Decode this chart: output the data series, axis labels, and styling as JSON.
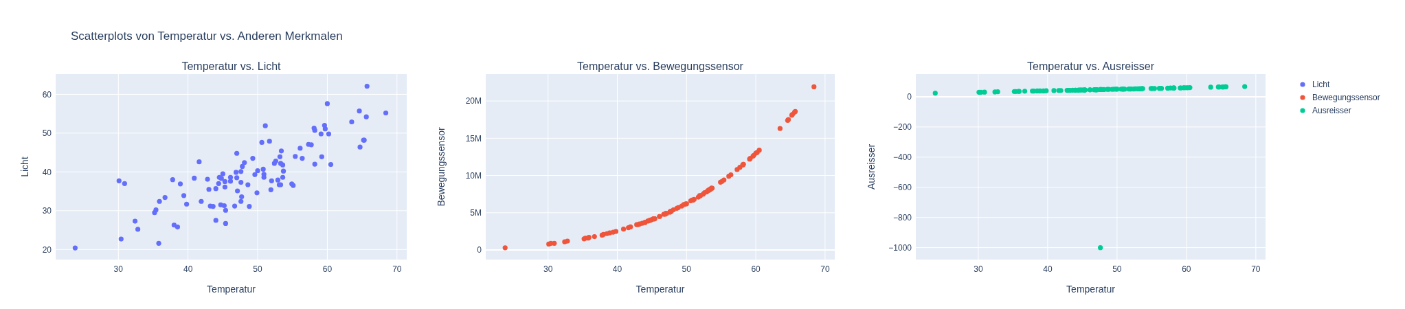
{
  "chart_data": [
    {
      "type": "scatter",
      "title": "Temperatur vs. Licht",
      "xlabel": "Temperatur",
      "ylabel": "Licht",
      "annotations": [
        "Scatterplots von Temperatur vs. Anderen Merkmalen"
      ],
      "xlim": [
        21,
        71.4
      ],
      "xticks": [
        30,
        40,
        50,
        60,
        70
      ],
      "ylim": [
        17.4,
        65.2
      ],
      "yticks": [
        20,
        30,
        40,
        50,
        60
      ],
      "grid": true,
      "marker": "circle",
      "legend": "right",
      "series": [
        {
          "name": "Licht",
          "color": "#636efa",
          "x": [
            23.8,
            30.1,
            30.9,
            30.4,
            32.4,
            32.8,
            35.2,
            35.4,
            35.8,
            35.9,
            36.7,
            37.8,
            38.0,
            38.5,
            38.9,
            39.4,
            39.8,
            40.9,
            41.6,
            41.9,
            42.8,
            43.0,
            43.2,
            43.6,
            44.0,
            44.0,
            44.4,
            44.5,
            44.8,
            44.7,
            45.0,
            45.2,
            45.3,
            45.3,
            45.4,
            45.4,
            46.1,
            46.1,
            46.7,
            46.9,
            47.0,
            47.0,
            47.1,
            47.6,
            47.6,
            47.6,
            47.7,
            47.8,
            48.1,
            48.6,
            48.8,
            49.3,
            49.6,
            49.9,
            50.0,
            50.6,
            50.8,
            50.9,
            50.9,
            51.1,
            51.7,
            51.9,
            52.0,
            52.4,
            52.6,
            52.9,
            53.1,
            53.3,
            53.2,
            53.3,
            53.4,
            53.6,
            53.6,
            53.7,
            54.9,
            55.1,
            55.4,
            56.1,
            56.4,
            57.3,
            57.7,
            58.1,
            58.2,
            58.2,
            59.1,
            59.2,
            59.6,
            59.7,
            60.0,
            60.2,
            60.5,
            63.5,
            64.6,
            64.7,
            65.2,
            65.3,
            65.6,
            65.7,
            68.4
          ],
          "values": [
            20.4,
            37.7,
            37.0,
            22.7,
            27.3,
            25.2,
            29.5,
            30.2,
            21.6,
            32.4,
            33.4,
            38.0,
            26.3,
            25.8,
            36.9,
            33.9,
            31.7,
            38.4,
            42.6,
            32.4,
            38.1,
            35.5,
            31.2,
            31.1,
            27.5,
            35.7,
            37.0,
            38.6,
            38.3,
            31.5,
            39.5,
            31.3,
            37.5,
            36.1,
            26.7,
            30.1,
            38.6,
            37.6,
            31.2,
            39.9,
            44.8,
            38.5,
            35.1,
            40.1,
            37.3,
            32.4,
            33.6,
            41.4,
            42.4,
            36.7,
            31.1,
            43.5,
            39.3,
            34.6,
            40.3,
            47.6,
            40.7,
            39.4,
            38.6,
            51.9,
            47.9,
            35.4,
            37.7,
            42.2,
            42.8,
            37.9,
            36.7,
            36.7,
            43.9,
            42.2,
            45.4,
            41.8,
            38.6,
            40.2,
            36.9,
            36.5,
            44.0,
            46.1,
            43.5,
            47.1,
            47.0,
            51.3,
            50.7,
            42.0,
            49.8,
            43.9,
            52.0,
            51.1,
            57.6,
            49.8,
            41.9,
            52.9,
            55.7,
            46.4,
            48.2,
            48.2,
            54.2,
            62.1,
            55.2
          ]
        }
      ]
    },
    {
      "type": "scatter",
      "title": "Temperatur vs. Bewegungssensor",
      "xlabel": "Temperatur",
      "ylabel": "Bewegungssensor",
      "xlim": [
        21,
        71.4
      ],
      "xticks": [
        30,
        40,
        50,
        60,
        70
      ],
      "ylim": [
        -1280000,
        23600000
      ],
      "yticks": [
        0,
        {
          "value": 5000000,
          "label": "5M"
        },
        {
          "value": 10000000,
          "label": "10M"
        },
        {
          "value": 15000000,
          "label": "15M"
        },
        {
          "value": 20000000,
          "label": "20M"
        }
      ],
      "grid": true,
      "marker": "circle",
      "legend": "right",
      "series": [
        {
          "name": "Bewegungssensor",
          "color": "#ef553b",
          "x": [
            23.8,
            30.1,
            30.9,
            30.4,
            32.4,
            32.8,
            35.2,
            35.4,
            35.8,
            35.9,
            36.7,
            37.8,
            38.0,
            38.5,
            38.9,
            39.4,
            39.8,
            40.9,
            41.6,
            41.9,
            42.8,
            43.0,
            43.2,
            43.6,
            44.0,
            44.0,
            44.4,
            44.5,
            44.8,
            44.7,
            45.0,
            45.2,
            45.3,
            45.3,
            45.4,
            45.4,
            46.1,
            46.1,
            46.7,
            46.9,
            47.0,
            47.0,
            47.1,
            47.6,
            47.6,
            47.6,
            47.7,
            47.8,
            48.1,
            48.6,
            48.8,
            49.3,
            49.6,
            49.9,
            50.0,
            50.6,
            50.8,
            50.9,
            50.9,
            51.1,
            51.7,
            51.9,
            52.0,
            52.4,
            52.6,
            52.9,
            53.1,
            53.3,
            53.2,
            53.3,
            53.4,
            53.6,
            53.6,
            53.7,
            54.9,
            55.1,
            55.4,
            56.1,
            56.4,
            57.3,
            57.7,
            58.1,
            58.2,
            58.2,
            59.1,
            59.2,
            59.6,
            59.7,
            60.0,
            60.2,
            60.5,
            63.5,
            64.6,
            64.7,
            65.2,
            65.3,
            65.6,
            65.7,
            68.4
          ],
          "values": [
            300000,
            800000,
            900000,
            900000,
            1100000,
            1200000,
            1500000,
            1600000,
            1600000,
            1700000,
            1800000,
            2000000,
            2100000,
            2200000,
            2300000,
            2400000,
            2500000,
            2800000,
            3000000,
            3100000,
            3400000,
            3400000,
            3500000,
            3600000,
            3700000,
            3700000,
            3900000,
            3900000,
            4000000,
            4000000,
            4100000,
            4200000,
            4200000,
            4200000,
            4200000,
            4200000,
            4500000,
            4500000,
            4800000,
            4800000,
            4900000,
            4900000,
            4900000,
            5100000,
            5100000,
            5100000,
            5200000,
            5200000,
            5400000,
            5600000,
            5700000,
            5900000,
            6100000,
            6200000,
            6200000,
            6600000,
            6700000,
            6700000,
            6700000,
            6800000,
            7100000,
            7300000,
            7300000,
            7500000,
            7700000,
            7800000,
            8000000,
            8100000,
            8000000,
            8100000,
            8100000,
            8300000,
            8300000,
            8300000,
            9100000,
            9200000,
            9400000,
            9900000,
            10100000,
            10800000,
            11100000,
            11400000,
            11500000,
            11500000,
            12200000,
            12300000,
            12600000,
            12700000,
            13000000,
            13100000,
            13400000,
            16300000,
            17400000,
            17500000,
            18100000,
            18200000,
            18500000,
            18600000,
            21900000
          ]
        }
      ]
    },
    {
      "type": "scatter",
      "title": "Temperatur vs. Ausreisser",
      "xlabel": "Temperatur",
      "ylabel": "Ausreisser",
      "xlim": [
        21,
        71.4
      ],
      "xticks": [
        30,
        40,
        50,
        60,
        70
      ],
      "ylim": [
        -1079,
        150
      ],
      "yticks": [
        {
          "value": -1000,
          "label": "−1000"
        },
        {
          "value": -800,
          "label": "−800"
        },
        {
          "value": -600,
          "label": "−600"
        },
        {
          "value": -400,
          "label": "−400"
        },
        {
          "value": -200,
          "label": "−200"
        },
        0
      ],
      "grid": true,
      "marker": "circle",
      "legend": "right",
      "series": [
        {
          "name": "Ausreisser",
          "color": "#00cc96",
          "x": [
            23.8,
            30.1,
            30.9,
            30.4,
            32.4,
            32.8,
            35.2,
            35.4,
            35.8,
            35.9,
            36.7,
            37.8,
            38.0,
            38.5,
            38.9,
            39.4,
            39.8,
            40.9,
            41.6,
            41.9,
            42.8,
            43.0,
            43.2,
            43.6,
            44.0,
            44.0,
            44.4,
            44.5,
            44.8,
            44.7,
            45.0,
            45.2,
            45.3,
            45.3,
            45.4,
            45.4,
            46.1,
            46.1,
            46.7,
            46.9,
            47.0,
            47.0,
            47.1,
            47.6,
            47.6,
            47.6,
            47.7,
            47.8,
            48.1,
            48.6,
            48.8,
            49.3,
            49.6,
            49.9,
            50.0,
            50.6,
            50.8,
            50.9,
            50.9,
            51.1,
            51.7,
            51.9,
            52.0,
            52.4,
            52.6,
            52.9,
            53.1,
            53.3,
            53.2,
            53.3,
            53.4,
            53.6,
            53.6,
            53.7,
            54.9,
            55.1,
            55.4,
            56.1,
            56.4,
            57.3,
            57.7,
            58.1,
            58.2,
            58.2,
            59.1,
            59.2,
            59.6,
            59.7,
            60.0,
            60.2,
            60.5,
            63.5,
            64.6,
            64.7,
            65.2,
            65.3,
            65.6,
            65.7,
            68.4
          ],
          "values": [
            24,
            30,
            31,
            30,
            32,
            33,
            35,
            35,
            36,
            36,
            37,
            38,
            38,
            39,
            39,
            39,
            40,
            41,
            42,
            42,
            43,
            43,
            43,
            44,
            44,
            44,
            44,
            45,
            45,
            45,
            45,
            45,
            45,
            45,
            45,
            45,
            46,
            46,
            47,
            47,
            47,
            47,
            47,
            -1000,
            48,
            48,
            48,
            48,
            48,
            49,
            49,
            49,
            50,
            50,
            50,
            51,
            51,
            51,
            51,
            51,
            52,
            52,
            52,
            52,
            53,
            53,
            53,
            53,
            53,
            53,
            53,
            54,
            54,
            54,
            55,
            55,
            55,
            56,
            56,
            57,
            58,
            58,
            58,
            58,
            59,
            59,
            60,
            60,
            60,
            60,
            61,
            64,
            65,
            65,
            65,
            65,
            66,
            66,
            68
          ]
        }
      ]
    }
  ]
}
